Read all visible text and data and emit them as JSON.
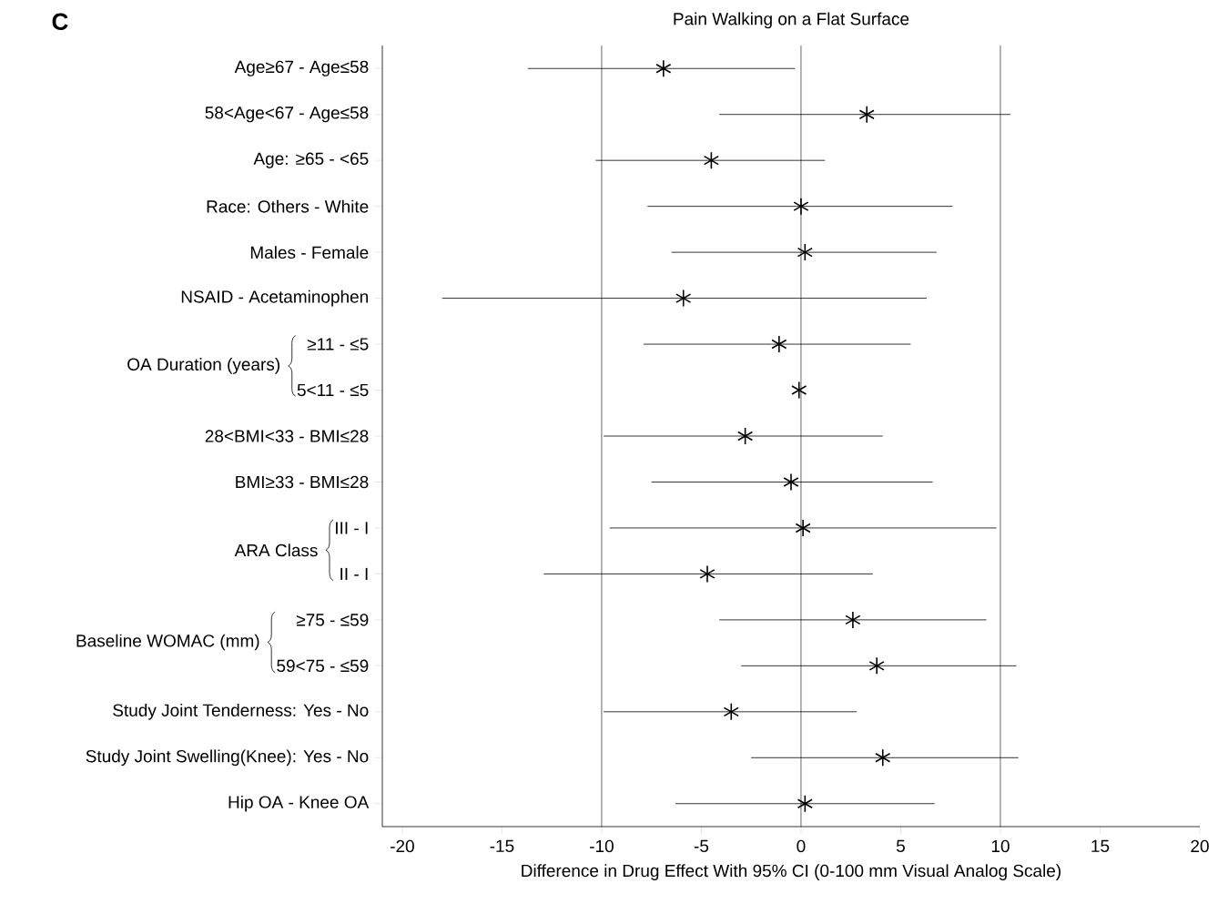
{
  "chart_data": {
    "type": "scatter",
    "orientation": "horizontal",
    "title": "Pain Walking on a Flat Surface",
    "xlabel": "Difference in Drug Effect With 95% CI (0-100 mm Visual Analog Scale)",
    "categories": [
      "Age≥67 - Age≤58",
      "58<Age<67 - Age≤58",
      "Age: ≥65 - <65",
      "Race: Others - White",
      "Males - Female",
      "NSAID - Acetaminophen",
      "≥11 - ≤5",
      "5<11 - ≤5",
      "28<BMI<33 - BMI≤28",
      "BMI≥33 - BMI≤28",
      "III - I",
      "II - I",
      "≥75 - ≤59",
      "59<75 - ≤59",
      "Study Joint Tenderness: Yes - No",
      "Study Joint Swelling(Knee): Yes - No",
      "Hip OA - Knee OA"
    ],
    "values": [
      -6.9,
      3.3,
      -4.5,
      0,
      0.2,
      -5.9,
      -1.1,
      -0.1,
      -2.8,
      -0.5,
      0.1,
      -4.7,
      2.6,
      3.8,
      -3.5,
      4.1,
      0.2
    ],
    "errors": [
      [
        -13.7,
        -0.3
      ],
      [
        -4.1,
        10.5
      ],
      [
        -10.3,
        1.2
      ],
      [
        -7.7,
        7.6
      ],
      [
        -6.5,
        6.8
      ],
      [
        -18.0,
        6.3
      ],
      [
        -7.9,
        5.5
      ],
      null,
      [
        -9.9,
        4.1
      ],
      [
        -7.5,
        6.6
      ],
      [
        -9.6,
        9.8
      ],
      [
        -12.9,
        3.6
      ],
      [
        -4.1,
        9.3
      ],
      [
        -3.0,
        10.8
      ],
      [
        -9.9,
        2.8
      ],
      [
        -2.5,
        10.9
      ],
      [
        -6.3,
        6.7
      ]
    ],
    "color": "#000000",
    "marker": "cross",
    "xlim": [
      -21,
      20
    ],
    "xticks": [
      -20,
      -15,
      -10,
      -5,
      0,
      5,
      10,
      15,
      20
    ],
    "ref_lines": [
      {
        "axis": "x",
        "value": -10
      },
      {
        "axis": "x",
        "value": 0
      },
      {
        "axis": "x",
        "value": 10
      }
    ],
    "annotations": [
      "C",
      "OA Duration (years)",
      "ARA Class",
      "Baseline WOMAC (mm)"
    ]
  }
}
